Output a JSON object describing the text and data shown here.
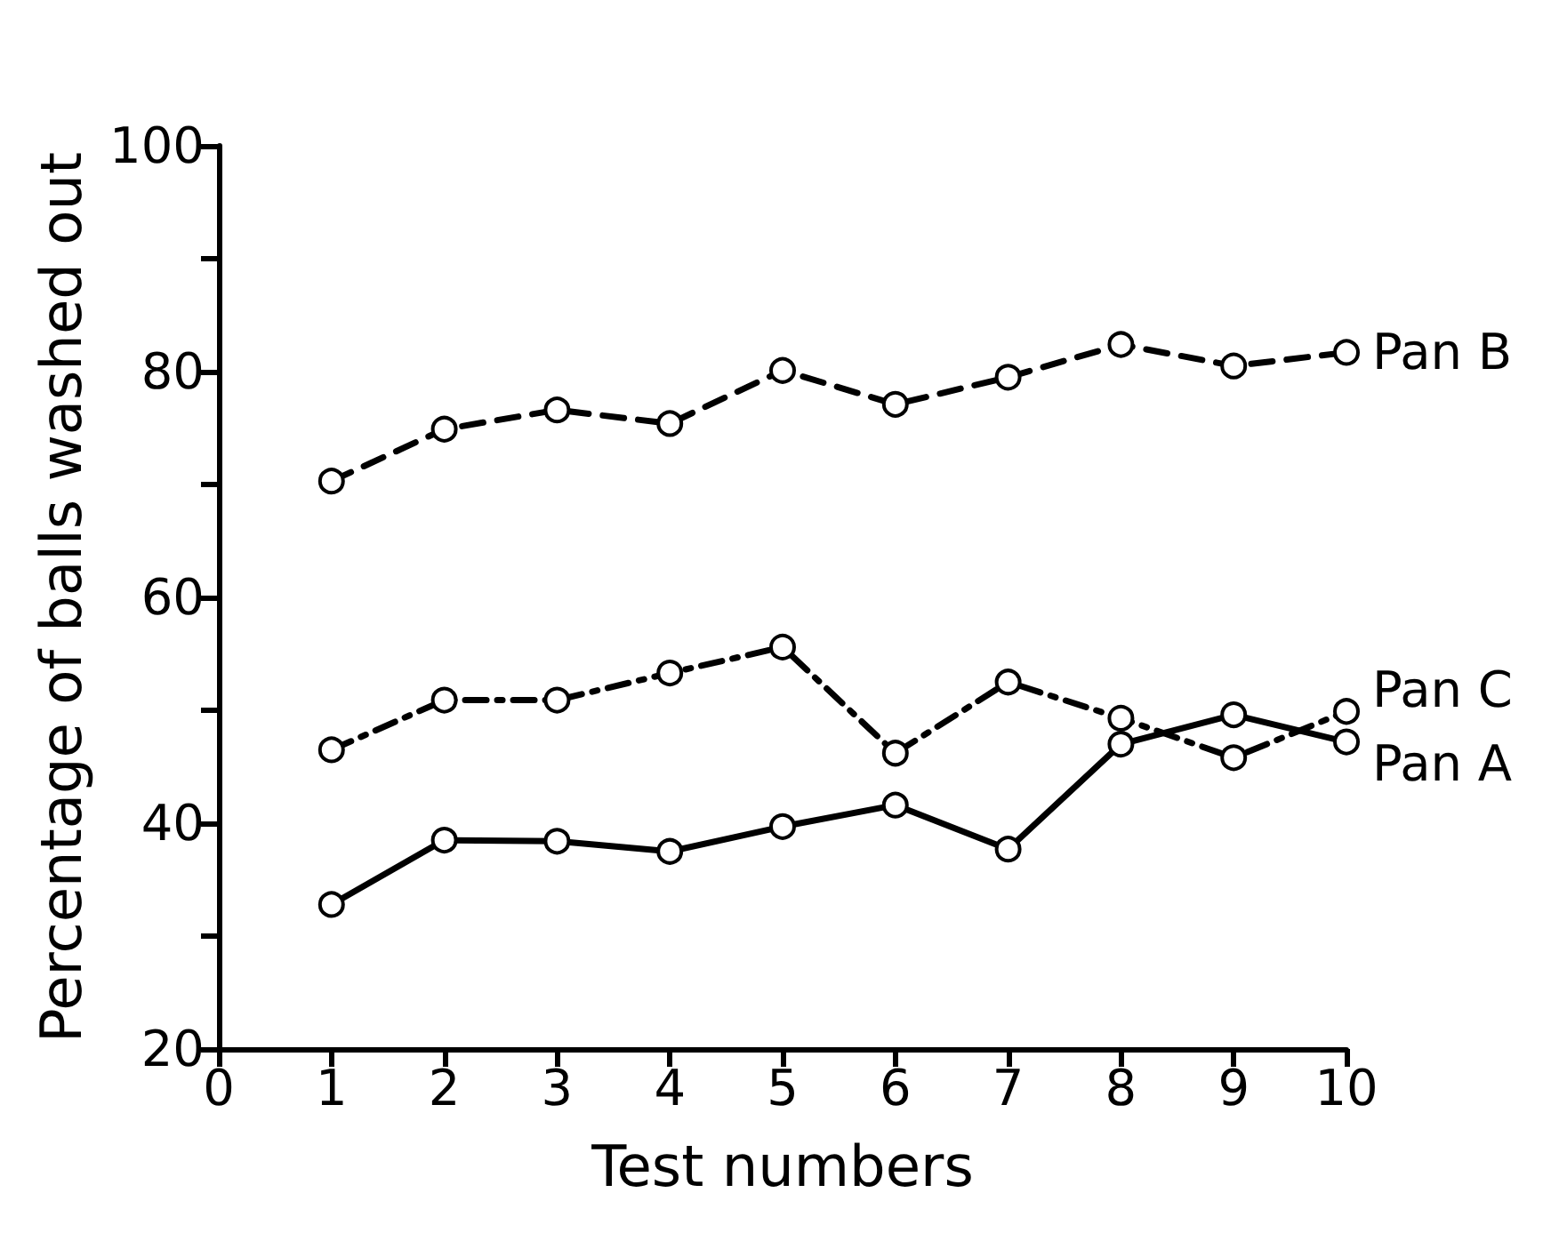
{
  "chart_data": {
    "type": "line",
    "xlabel": "Test numbers",
    "ylabel": "Percentage of balls washed out",
    "x": [
      1,
      2,
      3,
      4,
      5,
      6,
      7,
      8,
      9,
      10
    ],
    "series": [
      {
        "name": "Pan B",
        "color": "#000000",
        "line_style": "dashed",
        "values": [
          70.3,
          74.9,
          76.6,
          75.4,
          80.1,
          77.1,
          79.5,
          82.4,
          80.5,
          81.7
        ]
      },
      {
        "name": "Pan C",
        "color": "#000000",
        "line_style": "dashdot",
        "values": [
          46.5,
          50.9,
          50.9,
          53.3,
          55.6,
          46.2,
          52.5,
          49.3,
          45.8,
          49.9
        ]
      },
      {
        "name": "Pan A",
        "color": "#000000",
        "line_style": "solid",
        "values": [
          32.8,
          38.5,
          38.4,
          37.5,
          39.7,
          41.6,
          37.7,
          47.0,
          49.6,
          47.2
        ]
      }
    ],
    "xlim": [
      0,
      10
    ],
    "xticks": [
      0,
      1,
      2,
      3,
      4,
      5,
      6,
      7,
      8,
      9,
      10
    ],
    "ylim": [
      20,
      100
    ],
    "yticks": [
      20,
      {
        "value": 30,
        "label": null
      },
      40,
      {
        "value": 50,
        "label": null
      },
      60,
      {
        "value": 70,
        "label": null
      },
      80,
      {
        "value": 90,
        "label": null
      },
      100
    ],
    "marker": "circle",
    "grid": false,
    "legend": false
  }
}
